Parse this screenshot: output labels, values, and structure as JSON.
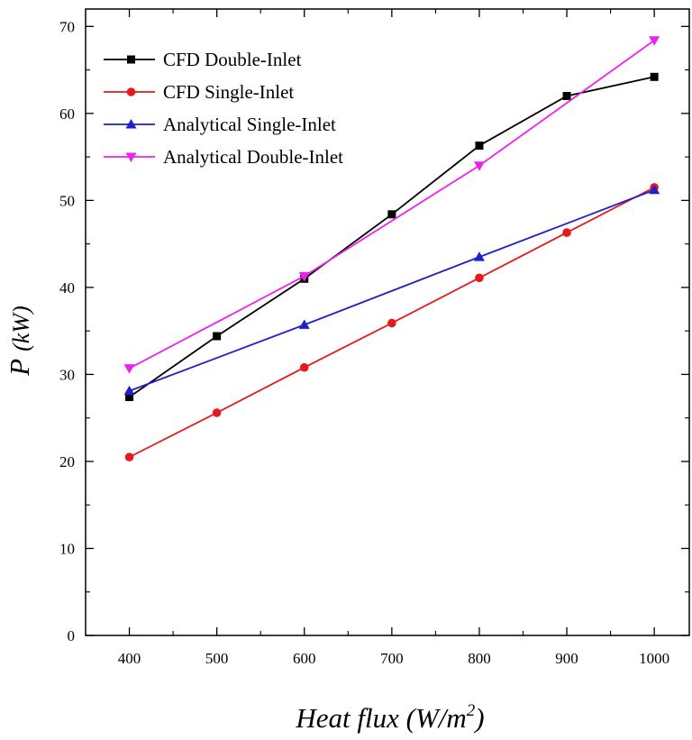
{
  "chart_data": {
    "type": "line",
    "x": [
      400,
      500,
      600,
      700,
      800,
      900,
      1000
    ],
    "xlim": [
      350,
      1040
    ],
    "ylim": [
      0,
      72
    ],
    "xticks": [
      400,
      500,
      600,
      700,
      800,
      900,
      1000
    ],
    "yticks": [
      0,
      10,
      20,
      30,
      40,
      50,
      60,
      70
    ],
    "xlabel": {
      "main": "Heat flux (W/m",
      "sup": "2",
      "close": ")"
    },
    "ylabel": {
      "var": "P",
      "unit": "(kW)"
    },
    "grid": false,
    "legend_position": "top-left",
    "series": [
      {
        "name": "CFD Double-Inlet",
        "color": "#000000",
        "marker": "square",
        "points": [
          [
            400,
            27.4
          ],
          [
            500,
            34.4
          ],
          [
            600,
            41.0
          ],
          [
            700,
            48.4
          ],
          [
            800,
            56.3
          ],
          [
            900,
            62.0
          ],
          [
            1000,
            64.2
          ]
        ]
      },
      {
        "name": "CFD Single-Inlet",
        "color": "#e41a1c",
        "marker": "circle",
        "points": [
          [
            400,
            20.5
          ],
          [
            500,
            25.6
          ],
          [
            600,
            30.8
          ],
          [
            700,
            35.9
          ],
          [
            800,
            41.1
          ],
          [
            900,
            46.3
          ],
          [
            1000,
            51.5
          ]
        ]
      },
      {
        "name": "Analytical Single-Inlet",
        "color": "#1f1fcc",
        "marker": "triangle-up",
        "points": [
          [
            400,
            28.1
          ],
          [
            600,
            35.7
          ],
          [
            800,
            43.5
          ],
          [
            1000,
            51.2
          ]
        ]
      },
      {
        "name": "Analytical Double-Inlet",
        "color": "#ee22ee",
        "marker": "triangle-down",
        "points": [
          [
            400,
            30.7
          ],
          [
            600,
            41.3
          ],
          [
            800,
            54.0
          ],
          [
            1000,
            68.4
          ]
        ]
      }
    ]
  }
}
